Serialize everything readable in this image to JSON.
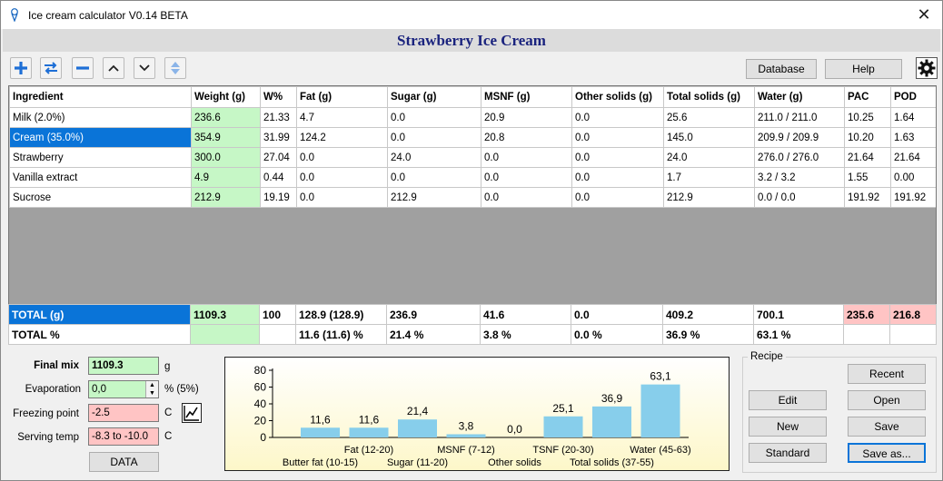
{
  "window": {
    "title": "Ice cream calculator  V0.14 BETA",
    "close": "✕"
  },
  "recipe_name": "Strawberry Ice Cream",
  "toolbar": {
    "icons": [
      "plus-icon",
      "swap-icon",
      "minus-icon",
      "chevron-up-icon",
      "chevron-down-icon",
      "up-down-icon",
      "gear-icon"
    ],
    "database_label": "Database",
    "help_label": "Help"
  },
  "grid": {
    "headers": [
      "Ingredient",
      "Weight (g)",
      "W%",
      "Fat (g)",
      "Sugar (g)",
      "MSNF (g)",
      "Other solids (g)",
      "Total solids (g)",
      "Water (g)",
      "PAC",
      "POD"
    ],
    "rows": [
      [
        "Milk (2.0%)",
        "236.6",
        "21.33",
        "4.7",
        "0.0",
        "20.9",
        "0.0",
        "25.6",
        "211.0 / 211.0",
        "10.25",
        "1.64"
      ],
      [
        "Cream (35.0%)",
        "354.9",
        "31.99",
        "124.2",
        "0.0",
        "20.8",
        "0.0",
        "145.0",
        "209.9 / 209.9",
        "10.20",
        "1.63"
      ],
      [
        "Strawberry",
        "300.0",
        "27.04",
        "0.0",
        "24.0",
        "0.0",
        "0.0",
        "24.0",
        "276.0 / 276.0",
        "21.64",
        "21.64"
      ],
      [
        "Vanilla extract",
        "4.9",
        "0.44",
        "0.0",
        "0.0",
        "0.0",
        "0.0",
        "1.7",
        "3.2 / 3.2",
        "1.55",
        "0.00"
      ],
      [
        "Sucrose",
        "212.9",
        "19.19",
        "0.0",
        "212.9",
        "0.0",
        "0.0",
        "212.9",
        "0.0 / 0.0",
        "191.92",
        "191.92"
      ]
    ],
    "selected_row": "Cream (35.0%)"
  },
  "totals": {
    "grams": [
      "TOTAL (g)",
      "1109.3",
      "100",
      "128.9 (128.9)",
      "236.9",
      "41.6",
      "0.0",
      "409.2",
      "700.1",
      "235.6",
      "216.8"
    ],
    "percent": [
      "TOTAL %",
      "",
      "",
      "11.6 (11.6) %",
      "21.4 %",
      "3.8 %",
      "0.0 %",
      "36.9 %",
      "63.1 %",
      "",
      ""
    ]
  },
  "mix": {
    "final_mix_label": "Final mix",
    "final_mix_value": "1109.3",
    "final_mix_unit": "g",
    "evaporation_label": "Evaporation",
    "evaporation_value": "0,0",
    "evaporation_unit": "% (5%)",
    "freezing_label": "Freezing point",
    "freezing_value": "-2.5",
    "freezing_unit": "C",
    "serving_label": "Serving temp",
    "serving_value": "-8.3 to -10.0",
    "serving_unit": "C",
    "data_label": "DATA",
    "graph_icon": "line-graph-icon"
  },
  "chart_data": {
    "type": "bar",
    "categories": [
      "Butter fat (10-15)",
      "Fat (12-20)",
      "Sugar (11-20)",
      "MSNF (7-12)",
      "Other solids",
      "TSNF (20-30)",
      "Total solids (37-55)",
      "Water (45-63)"
    ],
    "values": [
      11.6,
      11.6,
      21.4,
      3.8,
      0.0,
      25.1,
      36.9,
      63.1
    ],
    "data_labels": [
      "11,6",
      "11,6",
      "21,4",
      "3,8",
      "0,0",
      "25,1",
      "36,9",
      "63,1"
    ],
    "yticks": [
      "80",
      "60",
      "40",
      "20",
      "0"
    ],
    "ylim": [
      0,
      80
    ],
    "bar_color": "#87ceeb",
    "grid": false
  },
  "recipe": {
    "title": "Recipe",
    "recent": "Recent",
    "edit": "Edit",
    "open": "Open",
    "new": "New",
    "save": "Save",
    "standard": "Standard",
    "save_as": "Save as..."
  },
  "colors": {
    "title_text": "#1a237e",
    "selection": "#0a74d8",
    "weight_cell": "#c6f7c6",
    "pac_pod_total": "#ffc4c4",
    "field_pink": "#ffc4c4",
    "field_green": "#c6f7c6"
  }
}
